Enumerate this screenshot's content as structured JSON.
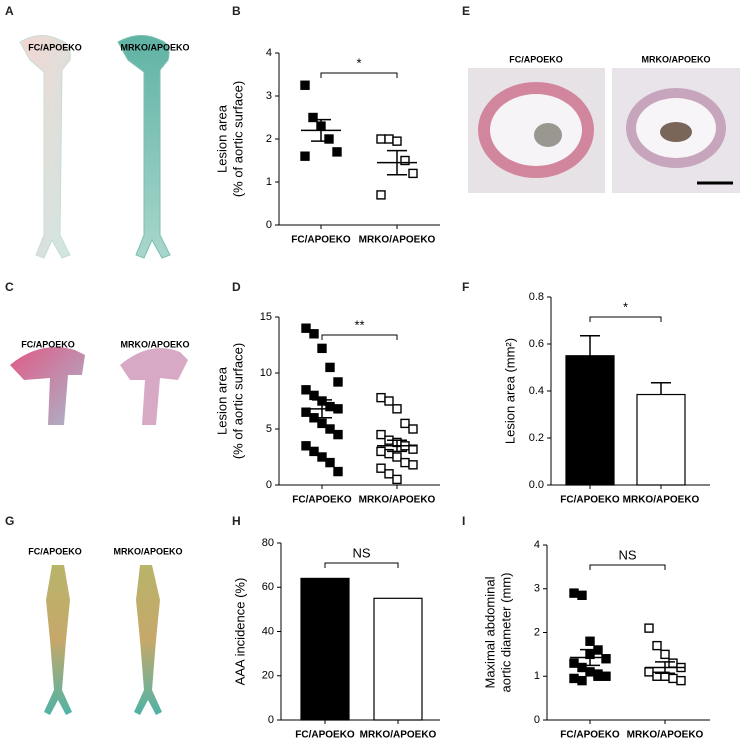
{
  "figure_panels": [
    {
      "panel": "A",
      "image_labels": [
        "FC/APOEKO",
        "MRKO/APOEKO"
      ]
    },
    {
      "panel": "C",
      "image_labels": [
        "FC/APOEKO",
        "MRKO/APOEKO"
      ]
    },
    {
      "panel": "E",
      "image_labels": [
        "FC/APOEKO",
        "MRKO/APOEKO"
      ]
    },
    {
      "panel": "G",
      "image_labels": [
        "FC/APOEKO",
        "MRKO/APOEKO"
      ]
    }
  ],
  "chart_data": [
    {
      "panel": "B",
      "type": "dot",
      "categories": [
        "FC/APOEKO",
        "MRKO/APOEKO"
      ],
      "ylabel": [
        "Lesion area",
        "(% of aortic surface)"
      ],
      "ylim": [
        0,
        4
      ],
      "yticks": [
        0,
        1,
        2,
        3,
        4
      ],
      "annotation": "*",
      "groups": [
        {
          "values": [
            3.25,
            2.5,
            2.3,
            2.0,
            1.7,
            1.6
          ],
          "mean": 2.2,
          "sem": 0.25,
          "filled": true
        },
        {
          "values": [
            2.0,
            2.0,
            1.95,
            1.5,
            1.2,
            0.7
          ],
          "mean": 1.45,
          "sem": 0.28,
          "filled": false
        }
      ]
    },
    {
      "panel": "D",
      "type": "dot",
      "categories": [
        "FC/APOEKO",
        "MRKO/APOEKO"
      ],
      "ylabel": [
        "Lesion area",
        "(% of aortic surface)"
      ],
      "ylim": [
        0,
        15
      ],
      "yticks": [
        0,
        5,
        10,
        15
      ],
      "annotation": "**",
      "groups": [
        {
          "values": [
            14.0,
            13.5,
            12.2,
            10.5,
            9.2,
            8.5,
            8.0,
            7.5,
            7.0,
            6.8,
            6.5,
            6.0,
            5.5,
            5.0,
            4.5,
            3.5,
            3.0,
            2.5,
            2.0,
            1.2
          ],
          "mean": 6.8,
          "sem": 0.8,
          "filled": true
        },
        {
          "values": [
            7.8,
            7.5,
            6.8,
            5.5,
            5.0,
            4.5,
            4.0,
            3.8,
            3.5,
            3.2,
            3.0,
            2.8,
            2.5,
            2.0,
            1.8,
            1.5,
            1.0,
            0.5
          ],
          "mean": 3.5,
          "sem": 0.5,
          "filled": false
        }
      ]
    },
    {
      "panel": "F",
      "type": "bar",
      "categories": [
        "FC/APOEKO",
        "MRKO/APOEKO"
      ],
      "ylabel": [
        "Lesion area (mm²)"
      ],
      "ylim": [
        0,
        0.8
      ],
      "yticks": [
        {
          "value": 0,
          "label": "0.0"
        },
        0.2,
        0.4,
        0.6,
        0.8
      ],
      "annotation": "*",
      "values": [
        0.55,
        0.385
      ],
      "errors": [
        0.085,
        0.05
      ],
      "colors": [
        "#000000",
        "#ffffff"
      ]
    },
    {
      "panel": "H",
      "type": "bar",
      "categories": [
        "FC/APOEKO",
        "MRKO/APOEKO"
      ],
      "ylabel": [
        "AAA incidence (%)"
      ],
      "ylim": [
        0,
        80
      ],
      "yticks": [
        0,
        20,
        40,
        60,
        80
      ],
      "annotation": "NS",
      "values": [
        64,
        55
      ],
      "colors": [
        "#000000",
        "#ffffff"
      ]
    },
    {
      "panel": "I",
      "type": "dot",
      "categories": [
        "FC/APOEKO",
        "MRKO/APOEKO"
      ],
      "ylabel": [
        "Maximal abdominal",
        "aortic diameter (mm)"
      ],
      "ylim": [
        0,
        4
      ],
      "yticks": [
        0,
        1,
        2,
        3,
        4
      ],
      "annotation": "NS",
      "groups": [
        {
          "values": [
            2.9,
            2.85,
            1.8,
            1.6,
            1.4,
            1.3,
            1.2,
            1.1,
            1.0,
            1.0,
            0.95,
            0.9,
            1.5,
            1.05
          ],
          "mean": 1.43,
          "sem": 0.18,
          "filled": true
        },
        {
          "values": [
            2.1,
            1.7,
            1.5,
            1.3,
            1.2,
            1.1,
            1.0,
            1.0,
            0.95,
            0.9
          ],
          "mean": 1.2,
          "sem": 0.13,
          "filled": false
        }
      ]
    }
  ]
}
